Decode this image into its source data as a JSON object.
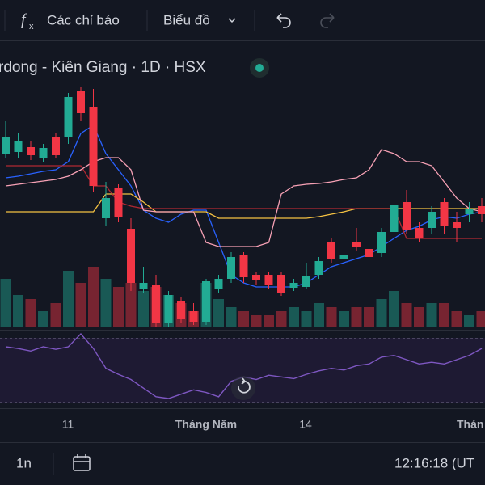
{
  "toolbar": {
    "indicators": "Các chỉ báo",
    "chart_type": "Biểu đồ"
  },
  "symbol": {
    "title": "rdong - Kiên Giang · 1D · HSX"
  },
  "chart": {
    "type": "candlestick",
    "up_color": "#22ab94",
    "down_color": "#f23645",
    "open": [
      310,
      312,
      318,
      305,
      330,
      330,
      387,
      368,
      230,
      268,
      217,
      143,
      148,
      100,
      128,
      115,
      102,
      142,
      155,
      184,
      160,
      160,
      160,
      144,
      145,
      160,
      200,
      180,
      200,
      192,
      187,
      213,
      250,
      218,
      218,
      250,
      225,
      235,
      245
    ],
    "high": [
      350,
      335,
      325,
      322,
      335,
      385,
      392,
      390,
      275,
      272,
      230,
      170,
      160,
      140,
      132,
      125,
      155,
      160,
      188,
      188,
      164,
      164,
      164,
      155,
      175,
      182,
      205,
      195,
      218,
      200,
      218,
      268,
      265,
      225,
      245,
      255,
      238,
      250,
      255
    ],
    "low": [
      305,
      305,
      302,
      300,
      305,
      322,
      350,
      262,
      220,
      225,
      140,
      138,
      95,
      95,
      100,
      98,
      98,
      138,
      150,
      150,
      148,
      142,
      134,
      140,
      142,
      155,
      175,
      175,
      190,
      170,
      182,
      208,
      210,
      200,
      210,
      210,
      200,
      225,
      225
    ],
    "close": [
      330,
      325,
      308,
      317,
      308,
      380,
      360,
      270,
      255,
      232,
      150,
      150,
      100,
      135,
      105,
      102,
      152,
      155,
      182,
      157,
      154,
      148,
      138,
      150,
      158,
      177,
      180,
      184,
      195,
      182,
      213,
      247,
      215,
      205,
      238,
      220,
      218,
      242,
      235
    ],
    "volume": [
      60,
      40,
      35,
      20,
      30,
      70,
      55,
      75,
      60,
      50,
      55,
      45,
      50,
      40,
      30,
      20,
      55,
      35,
      25,
      20,
      15,
      15,
      20,
      25,
      20,
      30,
      25,
      20,
      25,
      25,
      35,
      45,
      30,
      25,
      30,
      30,
      20,
      15,
      20
    ],
    "lines": [
      {
        "color": "#2962ff",
        "values": [
          280,
          282,
          285,
          288,
          290,
          300,
          335,
          345,
          310,
          290,
          270,
          240,
          230,
          225,
          235,
          240,
          240,
          200,
          160,
          150,
          145,
          145,
          145,
          145,
          150,
          160,
          170,
          175,
          180,
          185,
          195,
          205,
          215,
          220,
          228,
          232,
          230,
          235,
          238
        ]
      },
      {
        "color": "#f5c242",
        "values": [
          238,
          238,
          238,
          238,
          238,
          238,
          238,
          238,
          260,
          260,
          260,
          250,
          238,
          238,
          238,
          238,
          238,
          230,
          230,
          230,
          230,
          230,
          230,
          230,
          230,
          232,
          235,
          238,
          242,
          242,
          242,
          242,
          242,
          242,
          242,
          242,
          242,
          242,
          242
        ]
      },
      {
        "color": "#b22833",
        "values": [
          295,
          295,
          295,
          295,
          295,
          295,
          295,
          270,
          270,
          250,
          245,
          242,
          242,
          242,
          242,
          242,
          242,
          242,
          242,
          242,
          242,
          242,
          242,
          242,
          242,
          242,
          242,
          242,
          242,
          242,
          242,
          242,
          205,
          205,
          205,
          205,
          205,
          205,
          205
        ]
      },
      {
        "color": "#f7a1b5",
        "values": [
          270,
          272,
          274,
          276,
          278,
          282,
          290,
          300,
          305,
          305,
          290,
          240,
          238,
          238,
          238,
          238,
          200,
          195,
          195,
          195,
          195,
          200,
          260,
          270,
          272,
          273,
          275,
          278,
          280,
          290,
          315,
          310,
          300,
          300,
          295,
          275,
          255,
          242,
          238
        ]
      }
    ],
    "oscillator": {
      "color": "#7e57c2",
      "values": [
        70,
        68,
        65,
        70,
        67,
        70,
        85,
        68,
        45,
        38,
        32,
        22,
        12,
        10,
        15,
        20,
        17,
        12,
        30,
        35,
        32,
        37,
        35,
        33,
        38,
        42,
        45,
        43,
        48,
        50,
        58,
        60,
        55,
        50,
        52,
        50,
        55,
        60,
        68
      ]
    },
    "x_labels": [
      "11",
      "Tháng Năm",
      "14",
      "Thán"
    ]
  },
  "footer": {
    "range": "1n",
    "time": "12:16:18 (UT"
  }
}
